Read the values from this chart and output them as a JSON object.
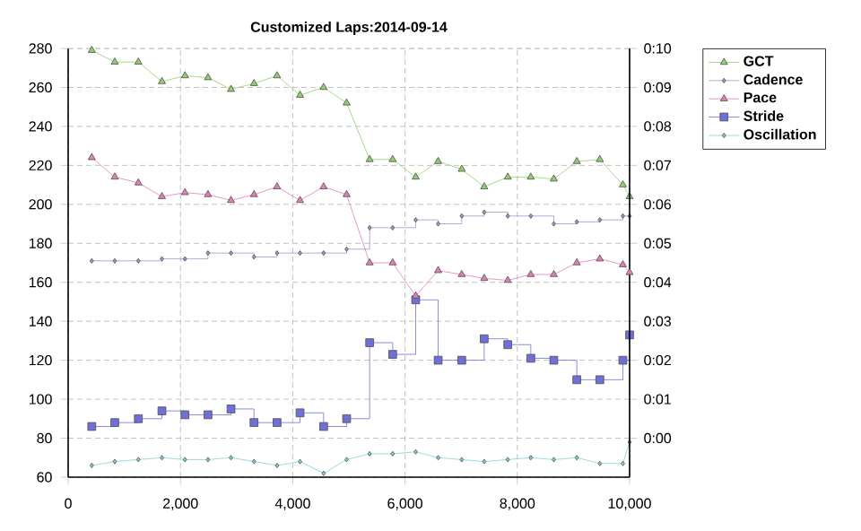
{
  "chart_data": {
    "type": "line",
    "title": "Customized Laps:2014-09-14",
    "x": [
      420,
      830,
      1250,
      1670,
      2080,
      2490,
      2900,
      3310,
      3720,
      4130,
      4550,
      4960,
      5370,
      5780,
      6190,
      6590,
      7010,
      7410,
      7830,
      8240,
      8650,
      9060,
      9470,
      9880,
      10000
    ],
    "series": [
      {
        "name": "GCT",
        "color": "#8fcf6f",
        "marker": "triangle",
        "values": [
          279,
          273,
          273,
          263,
          266,
          265,
          259,
          262,
          266,
          256,
          260,
          252,
          223,
          223,
          214,
          222,
          218,
          209,
          214,
          214,
          213,
          222,
          223,
          210,
          204
        ]
      },
      {
        "name": "Cadence",
        "color": "#a990c8",
        "type": "step",
        "marker": "diamond",
        "values": [
          171,
          171,
          171,
          172,
          172,
          175,
          175,
          173,
          175,
          175,
          175,
          177,
          188,
          188,
          192,
          190,
          194,
          196,
          194,
          194,
          190,
          191,
          192,
          194,
          194
        ]
      },
      {
        "name": "Pace",
        "color": "#e080b8",
        "axis": "y2",
        "marker": "triangle",
        "values": [
          7.2,
          6.7,
          6.55,
          6.2,
          6.3,
          6.25,
          6.1,
          6.25,
          6.45,
          6.1,
          6.45,
          6.25,
          4.5,
          4.5,
          3.65,
          4.3,
          4.2,
          4.1,
          4.05,
          4.2,
          4.2,
          4.5,
          4.6,
          4.45,
          4.25
        ]
      },
      {
        "name": "Stride",
        "color": "#6f6fd8",
        "type": "step",
        "marker": "square",
        "values": [
          86,
          88,
          90,
          94,
          92,
          92,
          95,
          88,
          88,
          93,
          86,
          90,
          129,
          123,
          151,
          120,
          120,
          131,
          128,
          121,
          120,
          110,
          110,
          120,
          133
        ]
      },
      {
        "name": "Oscillation",
        "color": "#80d0d0",
        "marker": "diamond",
        "values": [
          66,
          68,
          69,
          70,
          69,
          69,
          70,
          68,
          66,
          68,
          62,
          69,
          72,
          72,
          73,
          70,
          69,
          68,
          69,
          70,
          69,
          70,
          67,
          67,
          78
        ]
      }
    ],
    "xlim": [
      0,
      10000
    ],
    "xticks": [
      0,
      {
        "value": 2000,
        "label": "2,000"
      },
      {
        "value": 4000,
        "label": "4,000"
      },
      {
        "value": 6000,
        "label": "6,000"
      },
      {
        "value": 8000,
        "label": "8,000"
      },
      {
        "value": 10000,
        "label": "10,000"
      }
    ],
    "ylim": [
      60,
      280
    ],
    "yticks": [
      60,
      80,
      100,
      120,
      140,
      160,
      180,
      200,
      220,
      240,
      260,
      280
    ],
    "y2lim": [
      -1,
      10
    ],
    "y2ticks": [
      {
        "value": 0,
        "label": "0:00"
      },
      {
        "value": 1,
        "label": "0:01"
      },
      {
        "value": 2,
        "label": "0:02"
      },
      {
        "value": 3,
        "label": "0:03"
      },
      {
        "value": 4,
        "label": "0:04"
      },
      {
        "value": 5,
        "label": "0:05"
      },
      {
        "value": 6,
        "label": "0:06"
      },
      {
        "value": 7,
        "label": "0:07"
      },
      {
        "value": 8,
        "label": "0:08"
      },
      {
        "value": 9,
        "label": "0:09"
      },
      {
        "value": 10,
        "label": "0:10"
      }
    ],
    "grid": true,
    "legend": "top right"
  }
}
